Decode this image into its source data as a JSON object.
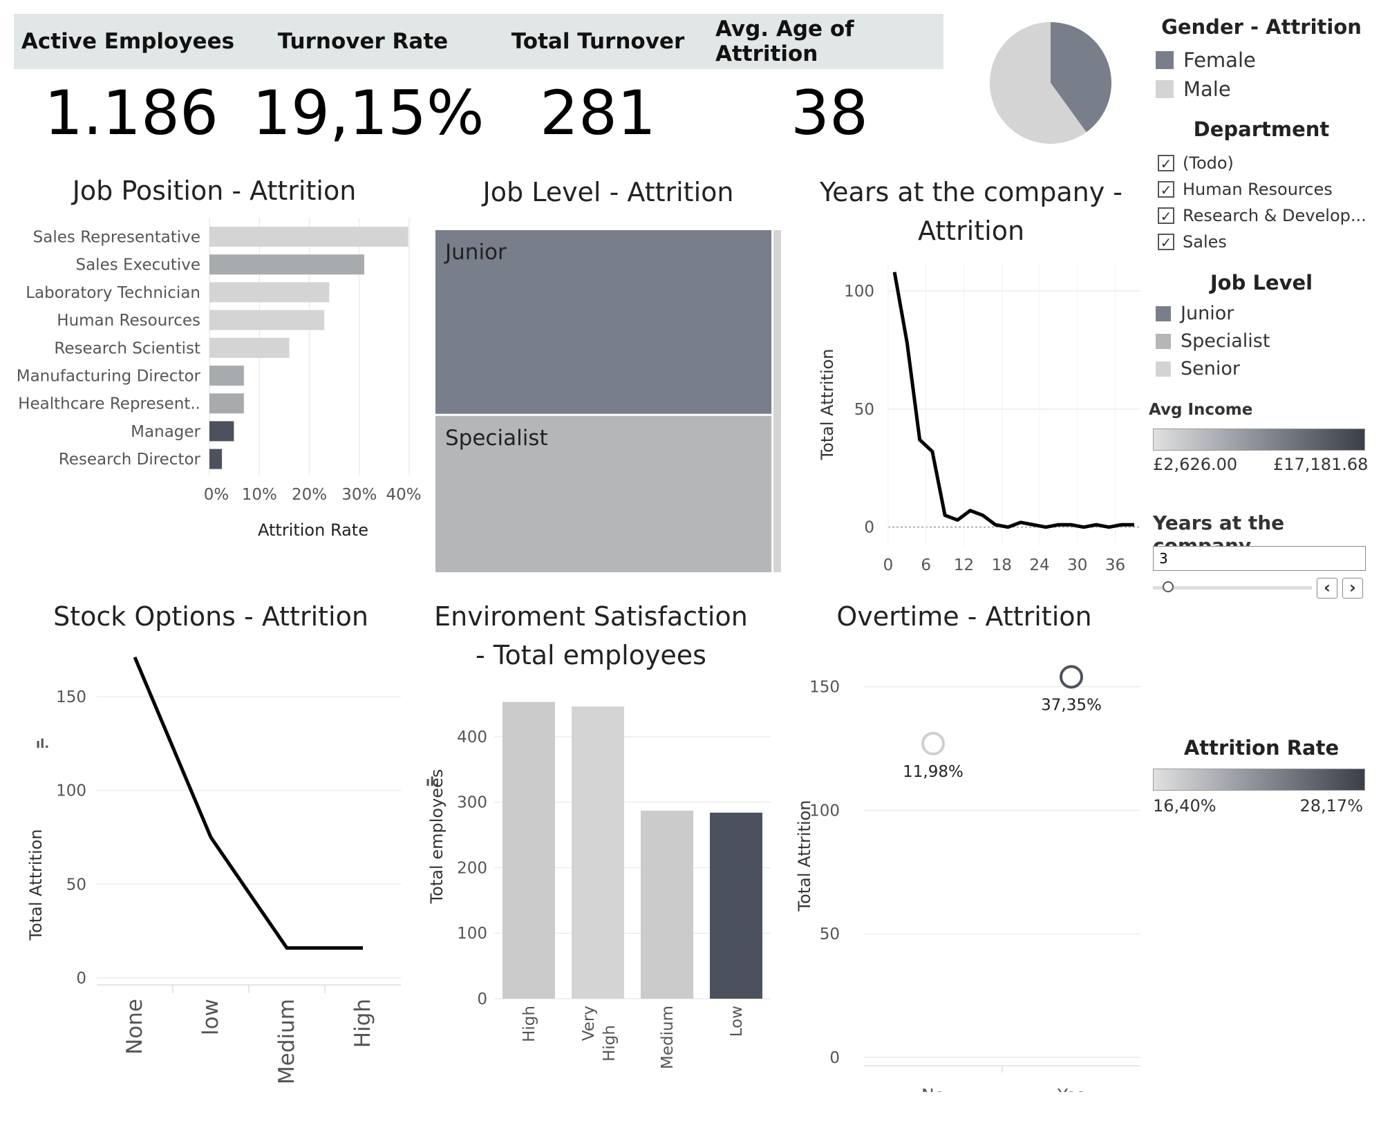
{
  "kpis": {
    "active_label": "Active Employees",
    "active_value": "1.186",
    "turnover_rate_label": "Turnover Rate",
    "turnover_rate_value": "19,15%",
    "total_turnover_label": "Total Turnover",
    "total_turnover_value": "281",
    "avg_age_label": "Avg. Age of Attrition",
    "avg_age_value": "38"
  },
  "colors": {
    "dark": "#4b525d",
    "mid": "#787f8b",
    "grey": "#a8abae",
    "light": "#d4d4d4",
    "line": "#000000"
  },
  "legends": {
    "gender": {
      "title": "Gender  - Attrition",
      "items": [
        {
          "label": "Female",
          "color": "#787f8b"
        },
        {
          "label": "Male",
          "color": "#d4d4d4"
        }
      ]
    },
    "department": {
      "title": "Department",
      "items": [
        {
          "label": "(Todo)",
          "checked": true
        },
        {
          "label": "Human Resources",
          "checked": true
        },
        {
          "label": "Research & Develop...",
          "checked": true
        },
        {
          "label": "Sales",
          "checked": true
        }
      ]
    },
    "job_level": {
      "title": "Job Level",
      "items": [
        {
          "label": "Junior",
          "color": "#787f8b"
        },
        {
          "label": "Specialist",
          "color": "#b4b6b8"
        },
        {
          "label": "Senior",
          "color": "#d4d4d4"
        }
      ]
    },
    "avg_income": {
      "title": "Avg Income",
      "min": "£2,626.00",
      "max": "£17,181.68"
    },
    "years_filter": {
      "title": "Years at the company",
      "value": "3",
      "prev": "‹",
      "next": "›"
    },
    "attrition_rate": {
      "title": "Attrition Rate",
      "min": "16,40%",
      "max": "28,17%"
    }
  },
  "chart_data": [
    {
      "id": "gender-pie",
      "type": "pie",
      "slices": [
        {
          "label": "Female",
          "value": 40,
          "color": "#787f8b"
        },
        {
          "label": "Male",
          "value": 60,
          "color": "#d4d4d4"
        }
      ]
    },
    {
      "id": "job-position",
      "type": "bar",
      "orientation": "horizontal",
      "title": "Job Position - Attrition",
      "xlabel": "Attrition Rate",
      "xlim": [
        0,
        40
      ],
      "xticks": [
        "0%",
        "10%",
        "20%",
        "30%",
        "40%"
      ],
      "categories": [
        "Sales Representative",
        "Sales Executive",
        "Laboratory Technician",
        "Human Resources",
        "Research Scientist",
        "Manufacturing Director",
        "Healthcare Represent..",
        "Manager",
        "Research Director"
      ],
      "values": [
        39.8,
        31.0,
        24.0,
        23.0,
        16.0,
        6.9,
        6.9,
        4.9,
        2.5
      ],
      "colors": [
        "#d4d4d4",
        "#a8abae",
        "#d4d4d4",
        "#d4d4d4",
        "#d4d4d4",
        "#a8abae",
        "#a8abae",
        "#4b525d",
        "#4b525d"
      ]
    },
    {
      "id": "job-level",
      "type": "treemap",
      "title": "Job Level  - Attrition",
      "items": [
        {
          "label": "Junior",
          "value": 196,
          "color": "#787f8b"
        },
        {
          "label": "Specialist",
          "value": 165,
          "color": "#b4b6b8"
        },
        {
          "label": "Senior",
          "value": 5,
          "color": "#d4d4d4"
        }
      ]
    },
    {
      "id": "years-company",
      "type": "line",
      "title": "Years at the company - Attrition",
      "ylabel": "Total Attrition",
      "x": [
        1,
        3,
        5,
        7,
        9,
        11,
        13,
        15,
        17,
        19,
        21,
        23,
        25,
        27,
        29,
        31,
        33,
        35,
        37,
        39
      ],
      "values": [
        108,
        78,
        37,
        32,
        5,
        3,
        7,
        5,
        1,
        0,
        2,
        1,
        0,
        1,
        1,
        0,
        1,
        0,
        1,
        1
      ],
      "ylim": [
        -8,
        112
      ],
      "yticks": [
        0,
        50,
        100
      ],
      "xticks": [
        0,
        6,
        12,
        18,
        24,
        30,
        36
      ]
    },
    {
      "id": "stock-options",
      "type": "line",
      "title": "Stock Options - Attrition",
      "ylabel": "Total Attrition",
      "categories": [
        "None",
        "low",
        "Medium",
        "High"
      ],
      "values": [
        171,
        75,
        16,
        16
      ],
      "ylim": [
        0,
        175
      ],
      "yticks": [
        0,
        50,
        100,
        150
      ]
    },
    {
      "id": "environment",
      "type": "bar",
      "title_line1": "Enviroment Satisfaction",
      "title_line2": "- Total employees",
      "ylabel": "Total employees",
      "categories": [
        "High",
        "Very High",
        "Medium",
        "Low"
      ],
      "values": [
        453,
        446,
        287,
        284
      ],
      "colors": [
        "#cbcbcb",
        "#d4d4d4",
        "#cbcbcb",
        "#4b525d"
      ],
      "ylim": [
        0,
        480
      ],
      "yticks": [
        0,
        100,
        200,
        300,
        400
      ]
    },
    {
      "id": "overtime",
      "type": "scatter",
      "title": "Overtime - Attrition",
      "ylabel": "Total Attrition",
      "categories": [
        "No",
        "Yes"
      ],
      "values": [
        127,
        154
      ],
      "labels": [
        "11,98%",
        "37,35%"
      ],
      "colors": [
        "#cfcfcf",
        "#4b525d"
      ],
      "ylim": [
        0,
        165
      ],
      "yticks": [
        0,
        50,
        100,
        150
      ]
    }
  ]
}
